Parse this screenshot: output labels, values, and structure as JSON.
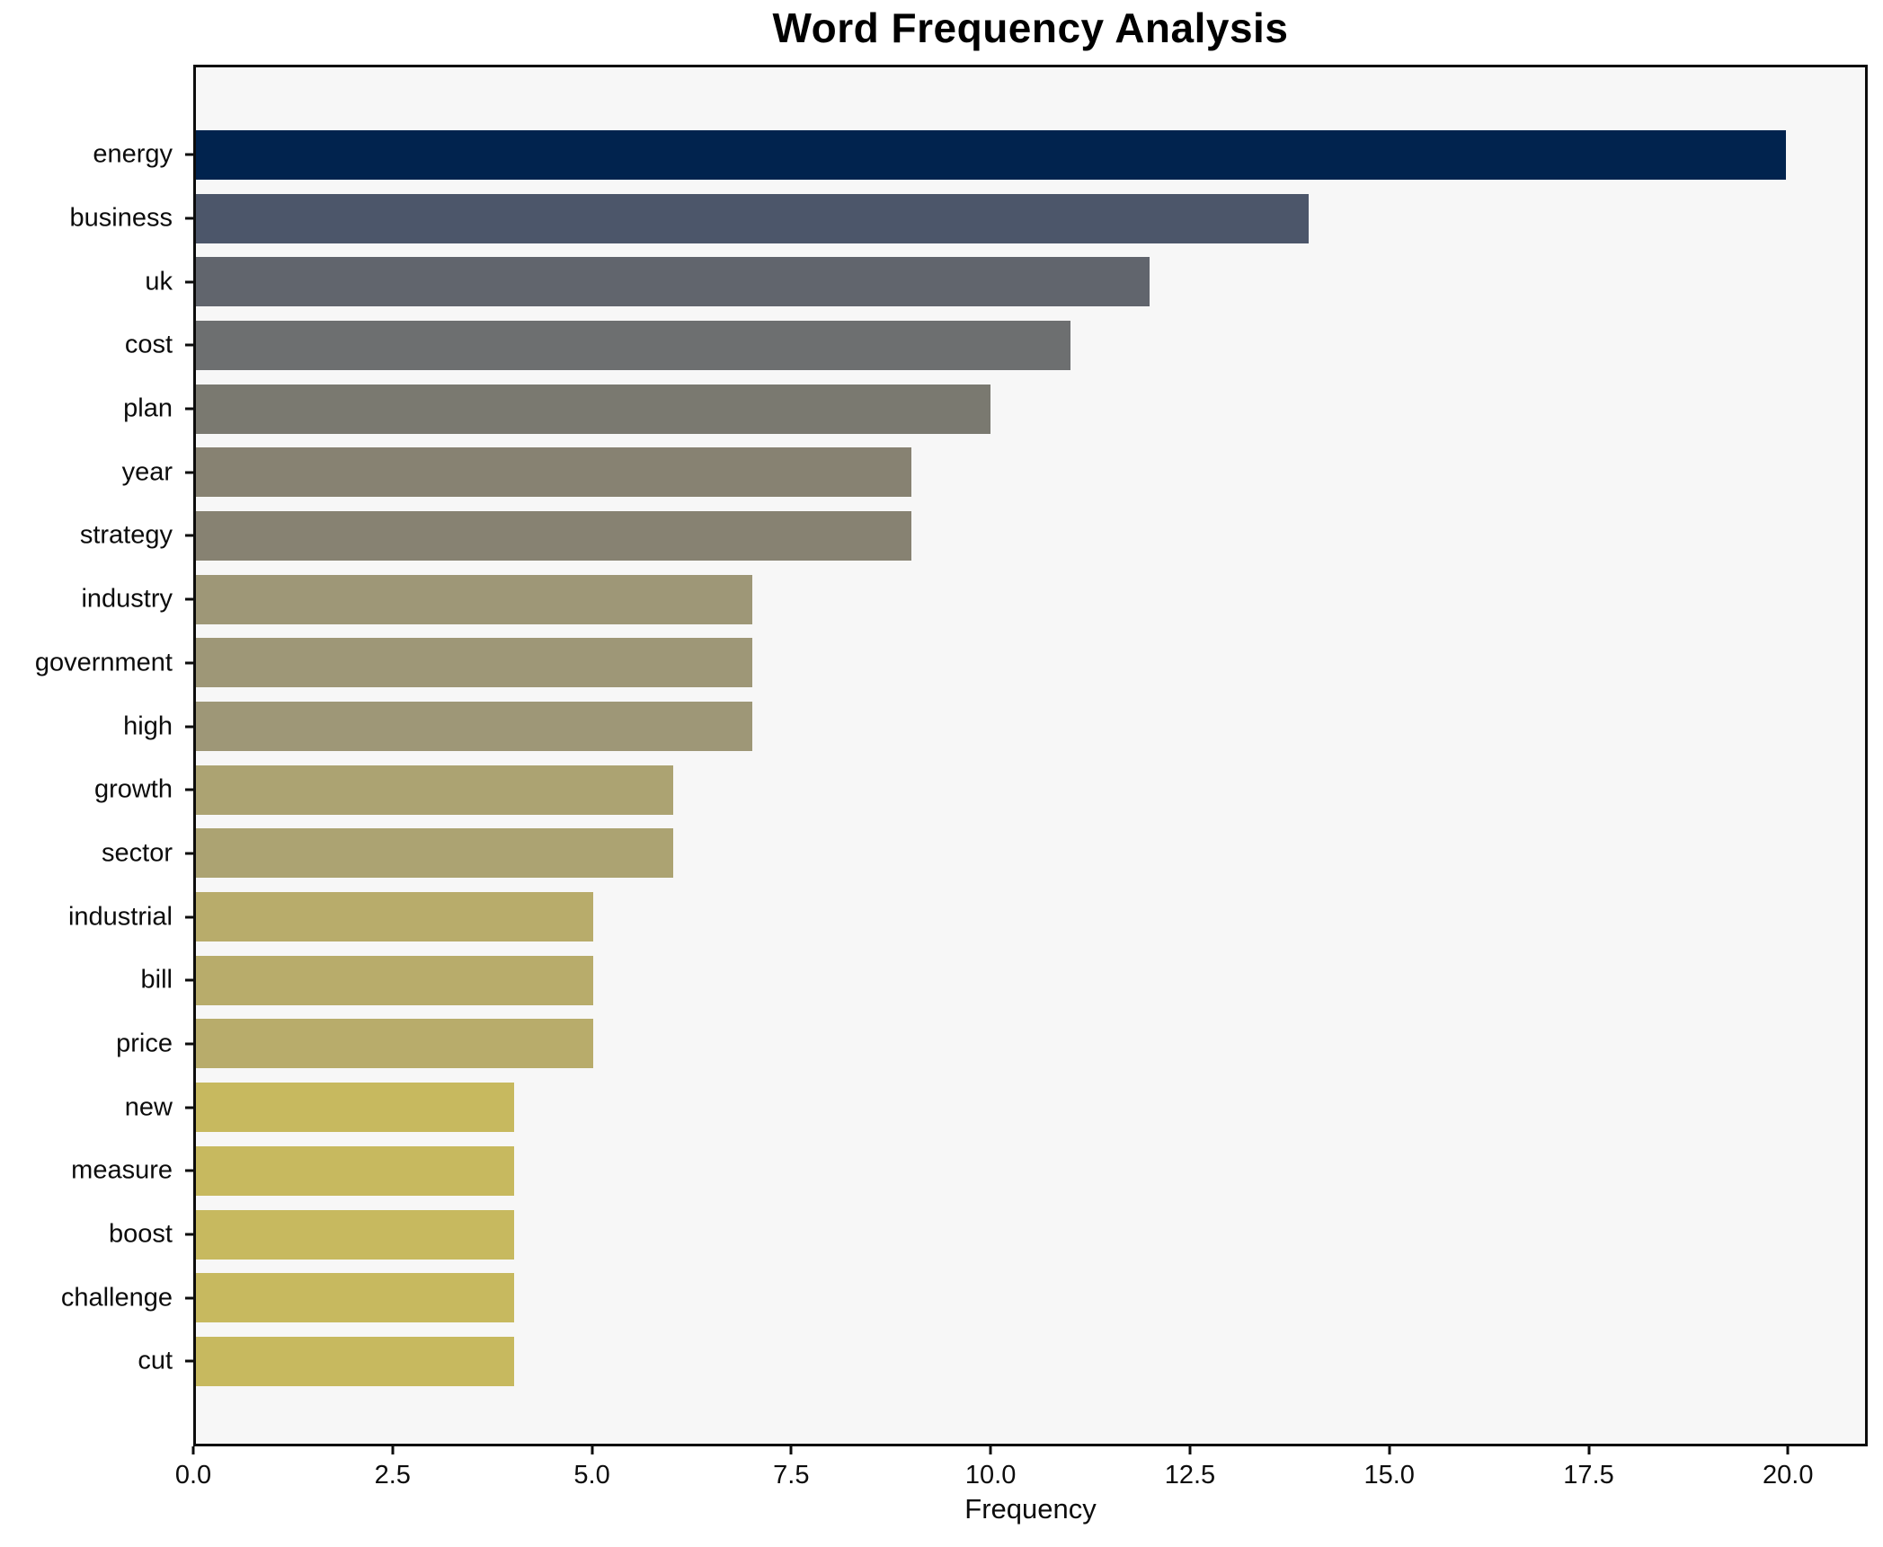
{
  "chart_data": {
    "type": "bar",
    "orientation": "horizontal",
    "title": "Word Frequency Analysis",
    "xlabel": "Frequency",
    "ylabel": "",
    "xlim": [
      0,
      21
    ],
    "grid": false,
    "legend": "none",
    "plot_background": "#f7f7f7",
    "figure_background": "#ffffff",
    "spine_color": "#0c0c0c",
    "text_color": "#0c0c0c",
    "xtick_labels": [
      "0.0",
      "2.5",
      "5.0",
      "7.5",
      "10.0",
      "12.5",
      "15.0",
      "17.5",
      "20.0"
    ],
    "xtick_values": [
      0,
      2.5,
      5,
      7.5,
      10,
      12.5,
      15,
      17.5,
      20
    ],
    "categories": [
      "energy",
      "business",
      "uk",
      "cost",
      "plan",
      "year",
      "strategy",
      "industry",
      "government",
      "high",
      "growth",
      "sector",
      "industrial",
      "bill",
      "price",
      "new",
      "measure",
      "boost",
      "challenge",
      "cut"
    ],
    "values": [
      20,
      14,
      12,
      11,
      10,
      9,
      9,
      7,
      7,
      7,
      6,
      6,
      5,
      5,
      5,
      4,
      4,
      4,
      4,
      4
    ],
    "bar_colors": [
      "#01234e",
      "#4c566a",
      "#61656d",
      "#6d6f70",
      "#7a7970",
      "#878272",
      "#878272",
      "#9e9777",
      "#9e9777",
      "#9e9777",
      "#aca372",
      "#aca372",
      "#b8ac6b",
      "#b8ac6b",
      "#b8ac6b",
      "#c7b95f",
      "#c7b95f",
      "#c7b95f",
      "#c7b95f",
      "#c7b95f"
    ]
  }
}
